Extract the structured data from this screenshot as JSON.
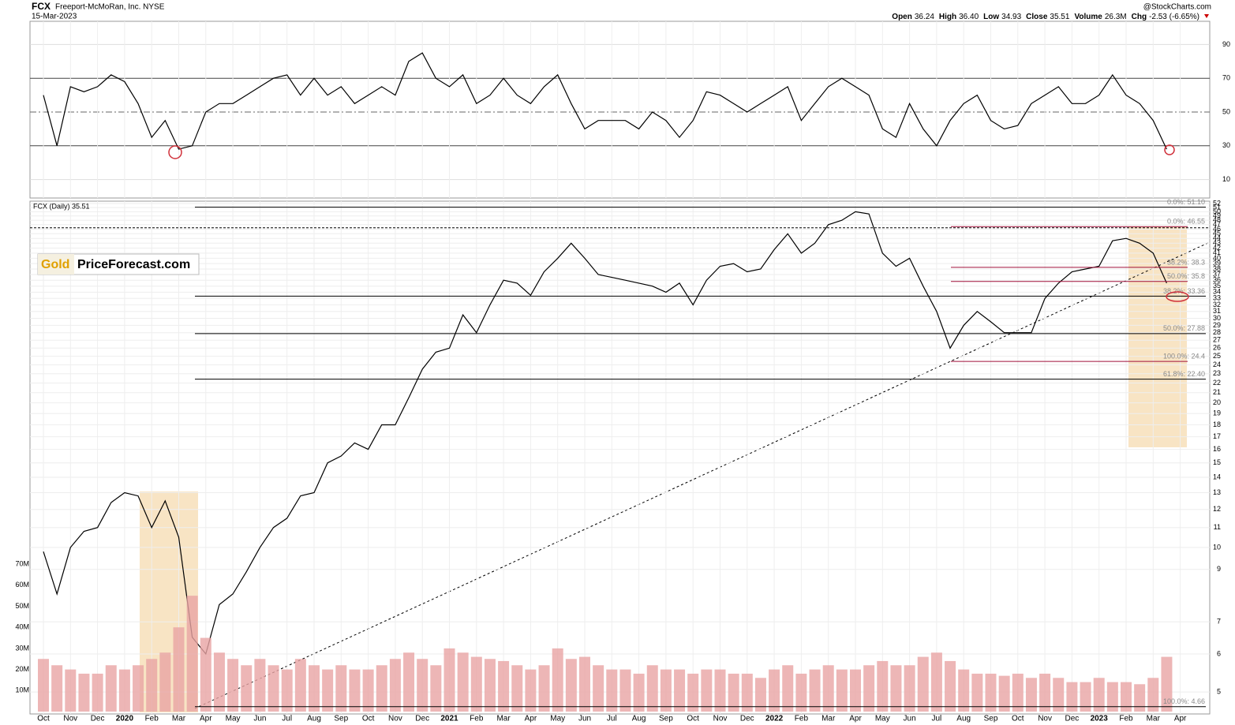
{
  "header": {
    "symbol": "FCX",
    "company": "Freeport-McMoRan, Inc. NYSE",
    "date": "15-Mar-2023",
    "source": "@StockCharts.com",
    "quote": [
      {
        "label": "Open",
        "value": "36.24"
      },
      {
        "label": "High",
        "value": "36.40"
      },
      {
        "label": "Low",
        "value": "34.93"
      },
      {
        "label": "Close",
        "value": "35.51"
      },
      {
        "label": "Volume",
        "value": "26.3M"
      },
      {
        "label": "Chg",
        "value": "-2.53 (-6.65%)"
      }
    ]
  },
  "logo": {
    "left": "Gold",
    "right": "PriceForecast.com"
  },
  "chart_data": [
    {
      "type": "line",
      "name": "rsi",
      "color": "#000000",
      "ylim": [
        0,
        100
      ],
      "yticks": [
        10,
        30,
        50,
        70,
        90
      ],
      "values": [
        60,
        30,
        65,
        62,
        65,
        72,
        68,
        55,
        35,
        45,
        28,
        30,
        50,
        55,
        55,
        60,
        65,
        70,
        72,
        60,
        70,
        60,
        65,
        55,
        60,
        65,
        60,
        80,
        85,
        70,
        65,
        72,
        55,
        60,
        70,
        60,
        55,
        65,
        72,
        55,
        40,
        45,
        45,
        45,
        40,
        50,
        45,
        35,
        45,
        62,
        60,
        55,
        50,
        55,
        60,
        65,
        45,
        55,
        65,
        70,
        65,
        60,
        40,
        35,
        55,
        40,
        30,
        45,
        55,
        60,
        45,
        40,
        42,
        55,
        60,
        65,
        55,
        55,
        60,
        72,
        60,
        55,
        45,
        28,
        null
      ]
    },
    {
      "type": "line",
      "name": "price",
      "legend": "FCX (Daily) 35.51",
      "color": "#000000",
      "log_scale": true,
      "grid": true,
      "ylim": [
        4.5,
        52.6
      ],
      "yticks": [
        5,
        6,
        7,
        9,
        10,
        11,
        12,
        13,
        14,
        15,
        16,
        17,
        18,
        19,
        20,
        21,
        22,
        23,
        24,
        25,
        26,
        27,
        28,
        29,
        30,
        31,
        32,
        33,
        34,
        35,
        36,
        37,
        38,
        39,
        40,
        41,
        42,
        43,
        44,
        45,
        46,
        47,
        48,
        49,
        50,
        51,
        52
      ],
      "categories": [
        "Oct",
        null,
        "Nov",
        null,
        "Dec",
        null,
        "2020",
        null,
        "Feb",
        null,
        "Mar",
        null,
        "Apr",
        null,
        "May",
        null,
        "Jun",
        null,
        "Jul",
        null,
        "Aug",
        null,
        "Sep",
        null,
        "Oct",
        null,
        "Nov",
        null,
        "Dec",
        null,
        "2021",
        null,
        "Feb",
        null,
        "Mar",
        null,
        "Apr",
        null,
        "May",
        null,
        "Jun",
        null,
        "Jul",
        null,
        "Aug",
        null,
        "Sep",
        null,
        "Oct",
        null,
        "Nov",
        null,
        "Dec",
        null,
        "2022",
        null,
        "Feb",
        null,
        "Mar",
        null,
        "Apr",
        null,
        "May",
        null,
        "Jun",
        null,
        "Jul",
        null,
        "Aug",
        null,
        "Sep",
        null,
        "Oct",
        null,
        "Nov",
        null,
        "Dec",
        null,
        "2023",
        null,
        "Feb",
        null,
        "Mar",
        null,
        "Apr"
      ],
      "values": [
        9.8,
        8.0,
        10.0,
        10.8,
        11.0,
        12.4,
        13.0,
        12.8,
        11.0,
        12.5,
        10.5,
        6.5,
        6.0,
        7.6,
        8.0,
        8.9,
        10.0,
        11.0,
        11.5,
        12.8,
        13.0,
        15.0,
        15.5,
        16.5,
        16.0,
        18.0,
        18.0,
        20.5,
        23.5,
        25.5,
        26.0,
        30.5,
        28,
        32,
        36,
        35.5,
        33.5,
        37.5,
        40,
        43,
        40,
        37,
        36.5,
        36,
        35.5,
        35,
        34,
        35.5,
        32,
        36,
        38.5,
        39,
        37.5,
        38,
        41.7,
        45,
        41,
        43,
        47,
        48,
        50,
        49.5,
        41,
        38.5,
        40,
        35,
        31,
        26,
        29,
        31,
        29.5,
        28,
        28,
        28,
        33,
        35.5,
        37.5,
        38,
        38.5,
        43.5,
        44,
        43,
        41,
        35.51,
        null
      ],
      "resistance_level": 46.3,
      "fib_levels": [
        {
          "value": 51.1,
          "label": "0.0%: 51.10"
        },
        {
          "value": 33.36,
          "label": "38.2%: 33.36"
        },
        {
          "value": 27.88,
          "label": "50.0%: 27.88"
        },
        {
          "value": 22.4,
          "label": "61.8%: 22.40"
        },
        {
          "value": 4.66,
          "label": "100.0%: 4.66"
        }
      ],
      "fib_levels_recent": [
        {
          "value": 46.55,
          "label": "0.0%: 46.55"
        },
        {
          "value": 38.3,
          "label": "38.2%: 38.3"
        },
        {
          "value": 35.8,
          "label": "50.0%: 35.8"
        },
        {
          "value": 24.4,
          "label": "100.0%: 24.4"
        }
      ]
    },
    {
      "type": "bar",
      "name": "volume",
      "color": "#e8a4a4",
      "ylim": [
        0,
        100000000
      ],
      "yticks": [
        {
          "value": 10000000,
          "label": "10M"
        },
        {
          "value": 20000000,
          "label": "20M"
        },
        {
          "value": 30000000,
          "label": "30M"
        },
        {
          "value": 40000000,
          "label": "40M"
        },
        {
          "value": 50000000,
          "label": "50M"
        },
        {
          "value": 60000000,
          "label": "60M"
        },
        {
          "value": 70000000,
          "label": "70M"
        }
      ],
      "values": [
        25000000,
        22000000,
        20000000,
        18000000,
        18000000,
        22000000,
        20000000,
        22000000,
        25000000,
        28000000,
        40000000,
        55000000,
        35000000,
        28000000,
        25000000,
        22000000,
        25000000,
        22000000,
        20000000,
        25000000,
        22000000,
        20000000,
        22000000,
        20000000,
        20000000,
        22000000,
        25000000,
        28000000,
        25000000,
        22000000,
        30000000,
        28000000,
        26000000,
        25000000,
        24000000,
        22000000,
        20000000,
        22000000,
        30000000,
        25000000,
        26000000,
        22000000,
        20000000,
        20000000,
        18000000,
        22000000,
        20000000,
        20000000,
        18000000,
        20000000,
        20000000,
        18000000,
        18000000,
        16000000,
        20000000,
        22000000,
        18000000,
        20000000,
        22000000,
        20000000,
        20000000,
        22000000,
        24000000,
        22000000,
        22000000,
        26000000,
        28000000,
        24000000,
        20000000,
        18000000,
        18000000,
        17000000,
        18000000,
        16000000,
        18000000,
        16000000,
        14000000,
        14000000,
        16000000,
        14000000,
        14000000,
        13000000,
        16000000,
        26000000,
        null
      ]
    }
  ]
}
